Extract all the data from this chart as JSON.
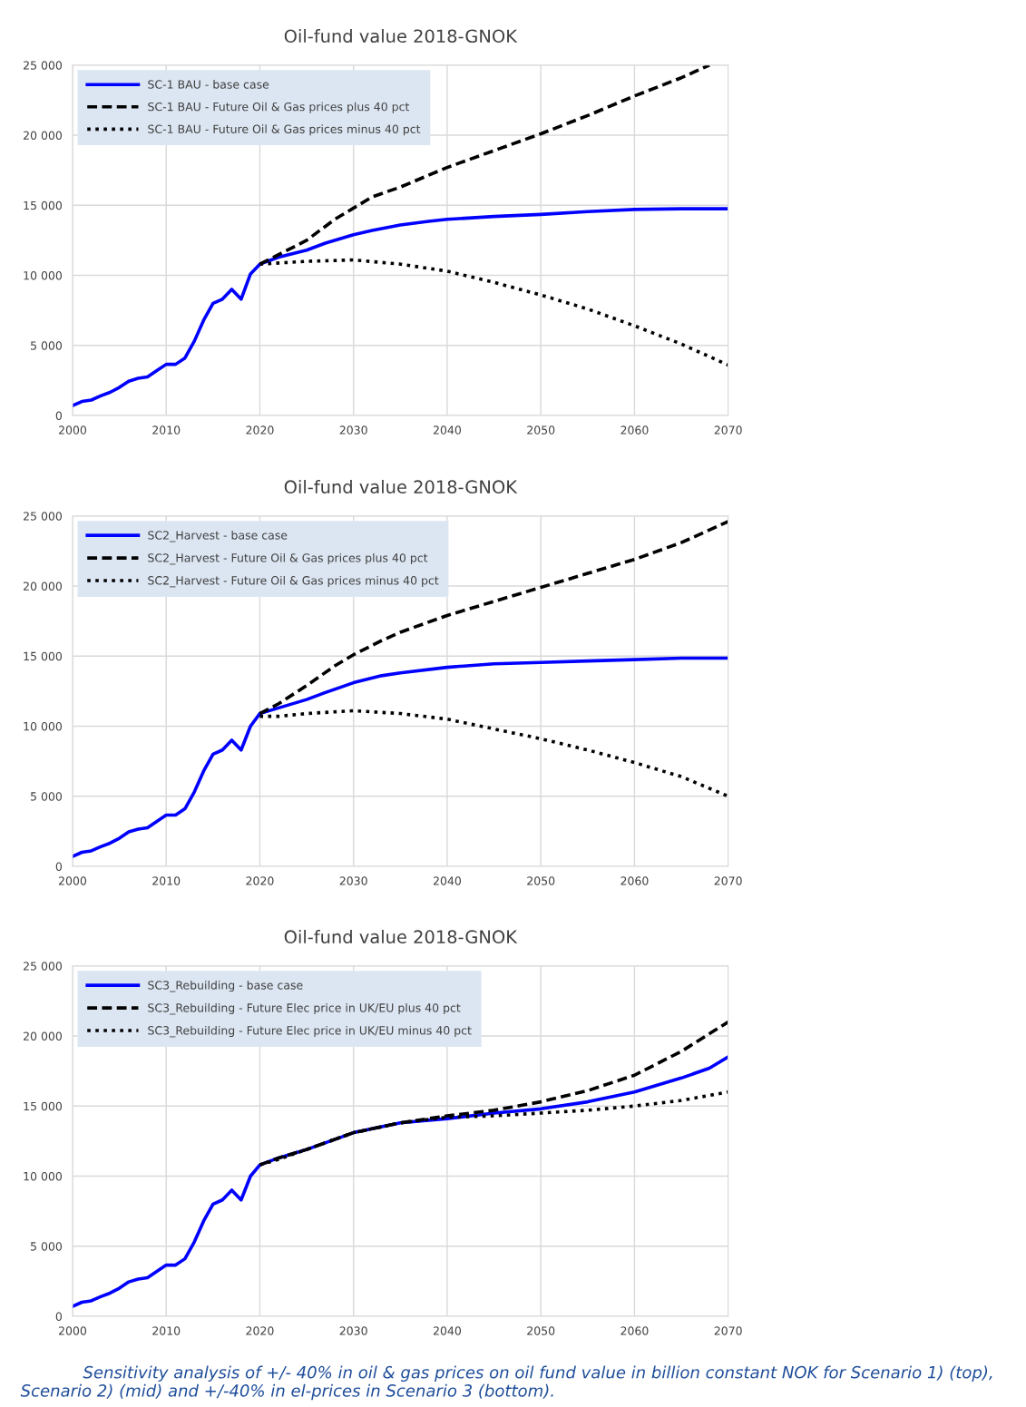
{
  "chart_data": [
    {
      "type": "line",
      "title": "Oil-fund value 2018-GNOK",
      "xlim": [
        2000,
        2070
      ],
      "xticks": [
        2000,
        2010,
        2020,
        2030,
        2040,
        2050,
        2060,
        2070
      ],
      "ylim": [
        0,
        25000
      ],
      "yticks": [
        0,
        {
          "value": 5000,
          "label": "5 000"
        },
        {
          "value": 10000,
          "label": "10 000"
        },
        {
          "value": 15000,
          "label": "15 000"
        },
        {
          "value": 20000,
          "label": "20 000"
        },
        {
          "value": 25000,
          "label": "25 000"
        }
      ],
      "grid": true,
      "legend": "top left",
      "marker": "none",
      "series": [
        {
          "name": "SC-1 BAU - base case",
          "color": "#0000ff",
          "line_style": "solid",
          "x": [
            2000,
            2001,
            2002,
            2003,
            2004,
            2005,
            2006,
            2007,
            2008,
            2009,
            2010,
            2011,
            2012,
            2013,
            2014,
            2015,
            2016,
            2017,
            2018,
            2019,
            2020,
            2022,
            2025,
            2027,
            2030,
            2032,
            2035,
            2038,
            2040,
            2045,
            2050,
            2055,
            2060,
            2065,
            2070
          ],
          "values": [
            700,
            1000,
            1100,
            1400,
            1650,
            2000,
            2450,
            2650,
            2750,
            3200,
            3650,
            3650,
            4100,
            5300,
            6800,
            8000,
            8300,
            9000,
            8300,
            10100,
            10800,
            11300,
            11800,
            12300,
            12900,
            13200,
            13600,
            13850,
            14000,
            14200,
            14350,
            14550,
            14700,
            14750,
            14750
          ]
        },
        {
          "name": "SC-1 BAU - Future Oil & Gas prices plus 40 pct",
          "color": "#000000",
          "line_style": "dashed",
          "x": [
            2020,
            2025,
            2028,
            2030,
            2032,
            2035,
            2040,
            2045,
            2050,
            2055,
            2060,
            2065,
            2068
          ],
          "values": [
            10800,
            12500,
            14000,
            14800,
            15600,
            16300,
            17700,
            18900,
            20100,
            21400,
            22800,
            24100,
            25000
          ]
        },
        {
          "name": "SC-1 BAU - Future Oil & Gas prices minus 40 pct",
          "color": "#000000",
          "line_style": "dotted",
          "x": [
            2020,
            2025,
            2030,
            2035,
            2040,
            2045,
            2050,
            2055,
            2060,
            2065,
            2070
          ],
          "values": [
            10800,
            11000,
            11100,
            10800,
            10300,
            9500,
            8600,
            7600,
            6400,
            5100,
            3600
          ]
        }
      ]
    },
    {
      "type": "line",
      "title": "Oil-fund value 2018-GNOK",
      "xlim": [
        2000,
        2070
      ],
      "xticks": [
        2000,
        2010,
        2020,
        2030,
        2040,
        2050,
        2060,
        2070
      ],
      "ylim": [
        0,
        25000
      ],
      "yticks": [
        0,
        {
          "value": 5000,
          "label": "5 000"
        },
        {
          "value": 10000,
          "label": "10 000"
        },
        {
          "value": 15000,
          "label": "15 000"
        },
        {
          "value": 20000,
          "label": "20 000"
        },
        {
          "value": 25000,
          "label": "25 000"
        }
      ],
      "grid": true,
      "legend": "top left",
      "marker": "none",
      "series": [
        {
          "name": "SC2_Harvest - base case",
          "color": "#0000ff",
          "line_style": "solid",
          "x": [
            2000,
            2001,
            2002,
            2003,
            2004,
            2005,
            2006,
            2007,
            2008,
            2009,
            2010,
            2011,
            2012,
            2013,
            2014,
            2015,
            2016,
            2017,
            2018,
            2019,
            2020,
            2022,
            2025,
            2027,
            2030,
            2033,
            2035,
            2040,
            2045,
            2050,
            2055,
            2060,
            2065,
            2070
          ],
          "values": [
            700,
            1000,
            1100,
            1400,
            1650,
            2000,
            2450,
            2650,
            2750,
            3200,
            3650,
            3650,
            4100,
            5300,
            6800,
            8000,
            8300,
            9000,
            8300,
            10000,
            10900,
            11300,
            11900,
            12400,
            13100,
            13600,
            13800,
            14200,
            14450,
            14550,
            14650,
            14750,
            14850,
            14850
          ]
        },
        {
          "name": "SC2_Harvest - Future Oil & Gas prices plus 40 pct",
          "color": "#000000",
          "line_style": "dashed",
          "x": [
            2020,
            2022,
            2025,
            2028,
            2030,
            2033,
            2035,
            2040,
            2045,
            2050,
            2055,
            2060,
            2065,
            2070
          ],
          "values": [
            10900,
            11600,
            12900,
            14300,
            15100,
            16100,
            16700,
            17900,
            18900,
            19900,
            20900,
            21900,
            23100,
            24600
          ]
        },
        {
          "name": "SC2_Harvest - Future Oil & Gas prices minus 40 pct",
          "color": "#000000",
          "line_style": "dotted",
          "x": [
            2020,
            2022,
            2025,
            2030,
            2035,
            2040,
            2045,
            2050,
            2055,
            2060,
            2065,
            2070
          ],
          "values": [
            10700,
            10700,
            10900,
            11100,
            10900,
            10500,
            9800,
            9100,
            8300,
            7400,
            6400,
            5000
          ]
        }
      ]
    },
    {
      "type": "line",
      "title": "Oil-fund value 2018-GNOK",
      "xlim": [
        2000,
        2070
      ],
      "xticks": [
        2000,
        2010,
        2020,
        2030,
        2040,
        2050,
        2060,
        2070
      ],
      "ylim": [
        0,
        25000
      ],
      "yticks": [
        0,
        {
          "value": 5000,
          "label": "5 000"
        },
        {
          "value": 10000,
          "label": "10 000"
        },
        {
          "value": 15000,
          "label": "15 000"
        },
        {
          "value": 20000,
          "label": "20 000"
        },
        {
          "value": 25000,
          "label": "25 000"
        }
      ],
      "grid": true,
      "legend": "top left",
      "marker": "none",
      "annotations": [
        "Sensitivity analysis of +/- 40% in oil & gas prices on oil fund value in billion constant NOK for Scenario 1) (top), Scenario 2) (mid) and +/-40% in el-prices in Scenario 3 (bottom)."
      ],
      "series": [
        {
          "name": "SC3_Rebuilding - base case",
          "color": "#0000ff",
          "line_style": "solid",
          "x": [
            2000,
            2001,
            2002,
            2003,
            2004,
            2005,
            2006,
            2007,
            2008,
            2009,
            2010,
            2011,
            2012,
            2013,
            2014,
            2015,
            2016,
            2017,
            2018,
            2019,
            2020,
            2022,
            2025,
            2030,
            2035,
            2040,
            2045,
            2050,
            2055,
            2060,
            2065,
            2068,
            2070
          ],
          "values": [
            700,
            1000,
            1100,
            1400,
            1650,
            2000,
            2450,
            2650,
            2750,
            3200,
            3650,
            3650,
            4100,
            5300,
            6800,
            8000,
            8300,
            9000,
            8300,
            10000,
            10800,
            11300,
            11900,
            13100,
            13800,
            14100,
            14500,
            14800,
            15300,
            16000,
            17000,
            17700,
            18500
          ]
        },
        {
          "name": "SC3_Rebuilding - Future Elec price in UK/EU plus 40 pct",
          "color": "#000000",
          "line_style": "dashed",
          "x": [
            2020,
            2022,
            2025,
            2030,
            2035,
            2040,
            2045,
            2050,
            2055,
            2060,
            2065,
            2070
          ],
          "values": [
            10800,
            11300,
            11900,
            13100,
            13800,
            14300,
            14700,
            15300,
            16100,
            17200,
            18900,
            21000
          ]
        },
        {
          "name": "SC3_Rebuilding - Future Elec price in UK/EU minus 40 pct",
          "color": "#000000",
          "line_style": "dotted",
          "x": [
            2020,
            2022,
            2025,
            2030,
            2035,
            2040,
            2045,
            2050,
            2055,
            2060,
            2065,
            2070
          ],
          "values": [
            10800,
            11200,
            11900,
            13100,
            13800,
            14200,
            14300,
            14500,
            14700,
            15000,
            15400,
            16000
          ]
        }
      ]
    }
  ]
}
